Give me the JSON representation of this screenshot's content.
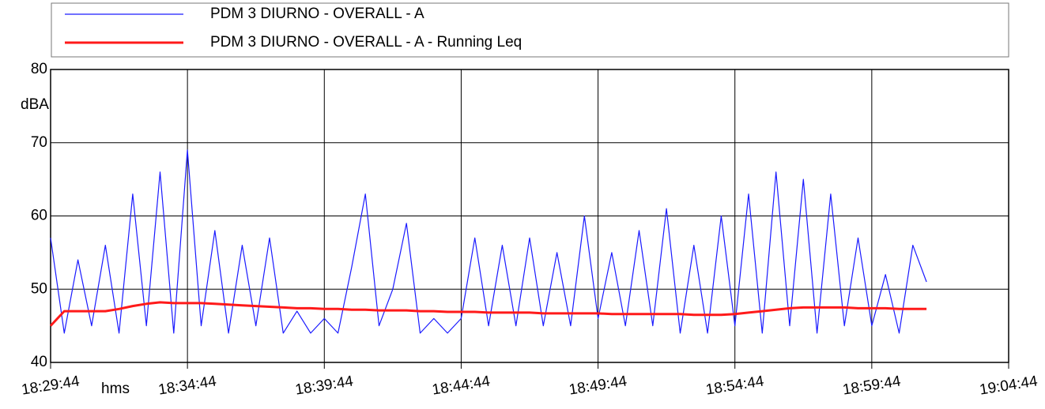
{
  "chart_data": {
    "type": "line",
    "x_label": "hms",
    "y_label": "dBA",
    "x": [
      "18:29:44",
      "18:30:14",
      "18:30:44",
      "18:31:14",
      "18:31:44",
      "18:32:14",
      "18:32:44",
      "18:33:14",
      "18:33:44",
      "18:34:14",
      "18:34:44",
      "18:35:14",
      "18:35:44",
      "18:36:14",
      "18:36:44",
      "18:37:14",
      "18:37:44",
      "18:38:14",
      "18:38:44",
      "18:39:14",
      "18:39:44",
      "18:40:14",
      "18:40:44",
      "18:41:14",
      "18:41:44",
      "18:42:14",
      "18:42:44",
      "18:43:14",
      "18:43:44",
      "18:44:14",
      "18:44:44",
      "18:45:14",
      "18:45:44",
      "18:46:14",
      "18:46:44",
      "18:47:14",
      "18:47:44",
      "18:48:14",
      "18:48:44",
      "18:49:14",
      "18:49:44",
      "18:50:14",
      "18:50:44",
      "18:51:14",
      "18:51:44",
      "18:52:14",
      "18:52:44",
      "18:53:14",
      "18:53:44",
      "18:54:14",
      "18:54:44",
      "18:55:14",
      "18:55:44",
      "18:56:14",
      "18:56:44",
      "18:57:14",
      "18:57:44",
      "18:58:14",
      "18:58:44",
      "18:59:14",
      "18:59:44",
      "19:00:14",
      "19:00:44",
      "19:01:14",
      "19:01:44"
    ],
    "series": [
      {
        "name": "PDM 3 DIURNO - OVERALL - A",
        "color": "#1a1aff",
        "width": 1.2,
        "values": [
          57,
          44,
          54,
          45,
          56,
          44,
          63,
          45,
          66,
          44,
          69,
          45,
          58,
          44,
          56,
          45,
          57,
          44,
          47,
          44,
          46,
          44,
          53,
          63,
          45,
          50,
          59,
          44,
          46,
          44,
          46,
          57,
          45,
          56,
          45,
          57,
          45,
          55,
          45,
          60,
          46,
          55,
          45,
          58,
          45,
          61,
          44,
          56,
          44,
          60,
          45,
          63,
          44,
          66,
          45,
          65,
          44,
          63,
          45,
          57,
          45,
          52,
          44,
          56,
          51
        ]
      },
      {
        "name": "PDM 3 DIURNO - OVERALL - A - Running Leq",
        "color": "#ff1a1a",
        "width": 3,
        "values": [
          45,
          47,
          47,
          47,
          47,
          47.3,
          47.7,
          48,
          48.2,
          48.1,
          48.1,
          48.1,
          48,
          47.9,
          47.8,
          47.7,
          47.6,
          47.5,
          47.4,
          47.4,
          47.3,
          47.3,
          47.2,
          47.2,
          47.1,
          47.1,
          47.1,
          47,
          47,
          46.9,
          46.9,
          46.9,
          46.8,
          46.8,
          46.8,
          46.8,
          46.7,
          46.7,
          46.7,
          46.7,
          46.7,
          46.6,
          46.6,
          46.6,
          46.6,
          46.6,
          46.6,
          46.5,
          46.5,
          46.5,
          46.6,
          46.8,
          47,
          47.2,
          47.4,
          47.5,
          47.5,
          47.5,
          47.5,
          47.4,
          47.4,
          47.4,
          47.3,
          47.3,
          47.3
        ]
      }
    ],
    "xlim": [
      "18:29:44",
      "19:04:44"
    ],
    "xticks": [
      "18:29:44",
      "18:34:44",
      "18:39:44",
      "18:44:44",
      "18:49:44",
      "18:54:44",
      "18:59:44",
      "19:04:44"
    ],
    "ylim": [
      40,
      80
    ],
    "yticks": [
      40,
      50,
      60,
      70,
      80
    ],
    "grid": true
  }
}
